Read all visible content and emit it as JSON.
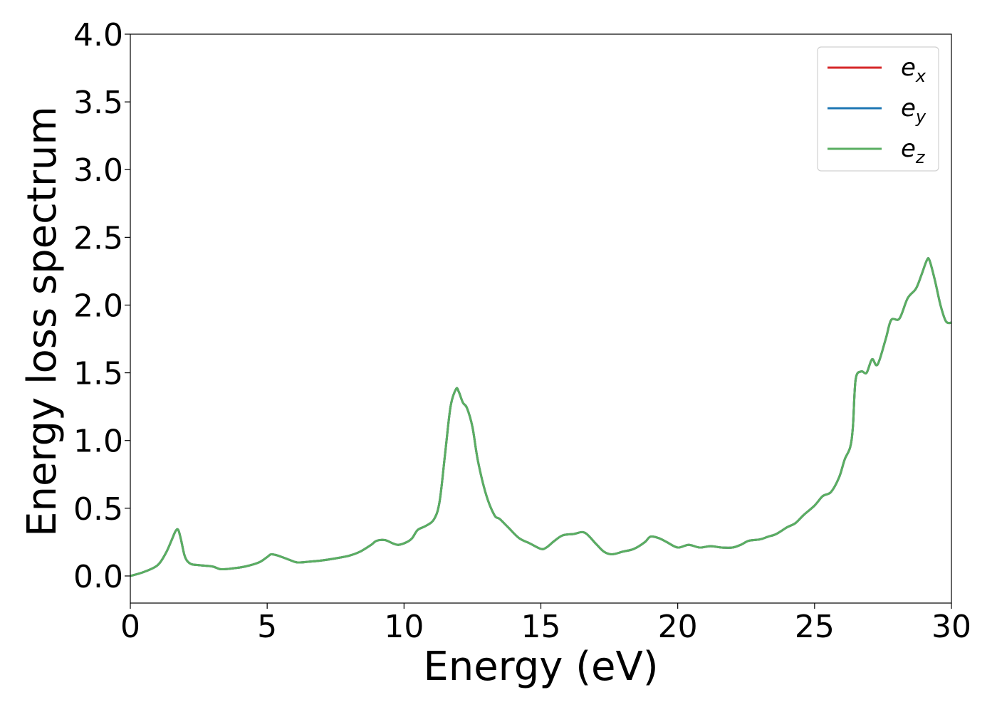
{
  "chart_data": {
    "type": "line",
    "title": "",
    "xlabel": "Energy (eV)",
    "ylabel": "Energy loss spectrum",
    "xlim": [
      0,
      30
    ],
    "ylim": [
      -0.2,
      4.0
    ],
    "x_ticks": [
      0,
      5,
      10,
      15,
      20,
      25,
      30
    ],
    "x_tick_labels": [
      "0",
      "5",
      "10",
      "15",
      "20",
      "25",
      "30"
    ],
    "y_ticks": [
      0.0,
      0.5,
      1.0,
      1.5,
      2.0,
      2.5,
      3.0,
      3.5,
      4.0
    ],
    "y_tick_labels": [
      "0.0",
      "0.5",
      "1.0",
      "1.5",
      "2.0",
      "2.5",
      "3.0",
      "3.5",
      "4.0"
    ],
    "grid": false,
    "legend": {
      "position": "top-right",
      "entries": [
        {
          "base": "e",
          "sub": "x",
          "color": "#d62728"
        },
        {
          "base": "e",
          "sub": "y",
          "color": "#1f77b4"
        },
        {
          "base": "e",
          "sub": "z",
          "color": "#5aae61"
        }
      ]
    },
    "x": [
      0.0,
      0.5,
      1.0,
      1.3,
      1.5,
      1.65,
      1.75,
      1.85,
      2.0,
      2.2,
      2.5,
      3.0,
      3.3,
      3.7,
      4.2,
      4.7,
      5.0,
      5.15,
      5.4,
      5.8,
      6.1,
      6.5,
      7.0,
      7.5,
      8.0,
      8.4,
      8.8,
      9.0,
      9.3,
      9.6,
      9.8,
      10.1,
      10.3,
      10.5,
      10.8,
      11.1,
      11.3,
      11.5,
      11.7,
      11.9,
      12.0,
      12.15,
      12.3,
      12.5,
      12.7,
      13.0,
      13.3,
      13.5,
      13.8,
      14.2,
      14.6,
      15.0,
      15.2,
      15.5,
      15.8,
      16.2,
      16.6,
      17.0,
      17.3,
      17.6,
      18.0,
      18.4,
      18.8,
      19.0,
      19.3,
      19.6,
      20.0,
      20.4,
      20.8,
      21.2,
      21.6,
      22.0,
      22.3,
      22.6,
      23.0,
      23.3,
      23.6,
      24.0,
      24.3,
      24.6,
      25.0,
      25.3,
      25.6,
      25.9,
      26.1,
      26.3,
      26.4,
      26.5,
      26.7,
      26.9,
      27.1,
      27.3,
      27.6,
      27.8,
      28.1,
      28.4,
      28.7,
      28.9,
      29.1,
      29.2,
      29.4,
      29.6,
      29.8,
      30.0
    ],
    "series": [
      {
        "name": "e_x",
        "color": "#d62728",
        "values": [
          0.0,
          0.03,
          0.08,
          0.17,
          0.26,
          0.33,
          0.34,
          0.27,
          0.14,
          0.09,
          0.08,
          0.07,
          0.05,
          0.055,
          0.07,
          0.1,
          0.14,
          0.16,
          0.15,
          0.12,
          0.1,
          0.105,
          0.115,
          0.13,
          0.15,
          0.18,
          0.23,
          0.26,
          0.265,
          0.24,
          0.23,
          0.25,
          0.28,
          0.34,
          0.37,
          0.42,
          0.55,
          0.9,
          1.25,
          1.38,
          1.36,
          1.28,
          1.24,
          1.1,
          0.85,
          0.6,
          0.45,
          0.42,
          0.36,
          0.28,
          0.24,
          0.2,
          0.21,
          0.26,
          0.3,
          0.31,
          0.32,
          0.24,
          0.18,
          0.16,
          0.18,
          0.2,
          0.25,
          0.29,
          0.28,
          0.25,
          0.21,
          0.23,
          0.21,
          0.22,
          0.21,
          0.21,
          0.23,
          0.26,
          0.27,
          0.29,
          0.31,
          0.36,
          0.39,
          0.45,
          0.52,
          0.59,
          0.62,
          0.73,
          0.86,
          0.95,
          1.1,
          1.45,
          1.51,
          1.5,
          1.6,
          1.56,
          1.75,
          1.89,
          1.9,
          2.05,
          2.12,
          2.22,
          2.33,
          2.33,
          2.18,
          2.0,
          1.88,
          1.87
        ]
      },
      {
        "name": "e_y",
        "color": "#1f77b4",
        "values": [
          0.0,
          0.03,
          0.08,
          0.17,
          0.26,
          0.33,
          0.34,
          0.27,
          0.14,
          0.09,
          0.08,
          0.07,
          0.05,
          0.055,
          0.07,
          0.1,
          0.14,
          0.16,
          0.15,
          0.12,
          0.1,
          0.105,
          0.115,
          0.13,
          0.15,
          0.18,
          0.23,
          0.26,
          0.265,
          0.24,
          0.23,
          0.25,
          0.28,
          0.34,
          0.37,
          0.42,
          0.55,
          0.9,
          1.25,
          1.38,
          1.36,
          1.28,
          1.24,
          1.1,
          0.85,
          0.6,
          0.45,
          0.42,
          0.36,
          0.28,
          0.24,
          0.2,
          0.21,
          0.26,
          0.3,
          0.31,
          0.32,
          0.24,
          0.18,
          0.16,
          0.18,
          0.2,
          0.25,
          0.29,
          0.28,
          0.25,
          0.21,
          0.23,
          0.21,
          0.22,
          0.21,
          0.21,
          0.23,
          0.26,
          0.27,
          0.29,
          0.31,
          0.36,
          0.39,
          0.45,
          0.52,
          0.59,
          0.62,
          0.73,
          0.86,
          0.95,
          1.1,
          1.45,
          1.51,
          1.5,
          1.6,
          1.56,
          1.75,
          1.89,
          1.9,
          2.05,
          2.12,
          2.22,
          2.33,
          2.33,
          2.18,
          2.0,
          1.88,
          1.87
        ]
      },
      {
        "name": "e_z",
        "color": "#5aae61",
        "values": [
          0.0,
          0.03,
          0.08,
          0.17,
          0.26,
          0.33,
          0.34,
          0.27,
          0.14,
          0.09,
          0.08,
          0.07,
          0.05,
          0.055,
          0.07,
          0.1,
          0.14,
          0.16,
          0.15,
          0.12,
          0.1,
          0.105,
          0.115,
          0.13,
          0.15,
          0.18,
          0.23,
          0.26,
          0.265,
          0.24,
          0.23,
          0.25,
          0.28,
          0.34,
          0.37,
          0.42,
          0.55,
          0.9,
          1.25,
          1.38,
          1.36,
          1.28,
          1.24,
          1.1,
          0.85,
          0.6,
          0.45,
          0.42,
          0.36,
          0.28,
          0.24,
          0.2,
          0.21,
          0.26,
          0.3,
          0.31,
          0.32,
          0.24,
          0.18,
          0.16,
          0.18,
          0.2,
          0.25,
          0.29,
          0.28,
          0.25,
          0.21,
          0.23,
          0.21,
          0.22,
          0.21,
          0.21,
          0.23,
          0.26,
          0.27,
          0.29,
          0.31,
          0.36,
          0.39,
          0.45,
          0.52,
          0.59,
          0.62,
          0.73,
          0.86,
          0.95,
          1.1,
          1.45,
          1.51,
          1.5,
          1.6,
          1.56,
          1.75,
          1.89,
          1.9,
          2.05,
          2.12,
          2.22,
          2.33,
          2.33,
          2.18,
          2.0,
          1.88,
          1.87
        ]
      }
    ]
  }
}
